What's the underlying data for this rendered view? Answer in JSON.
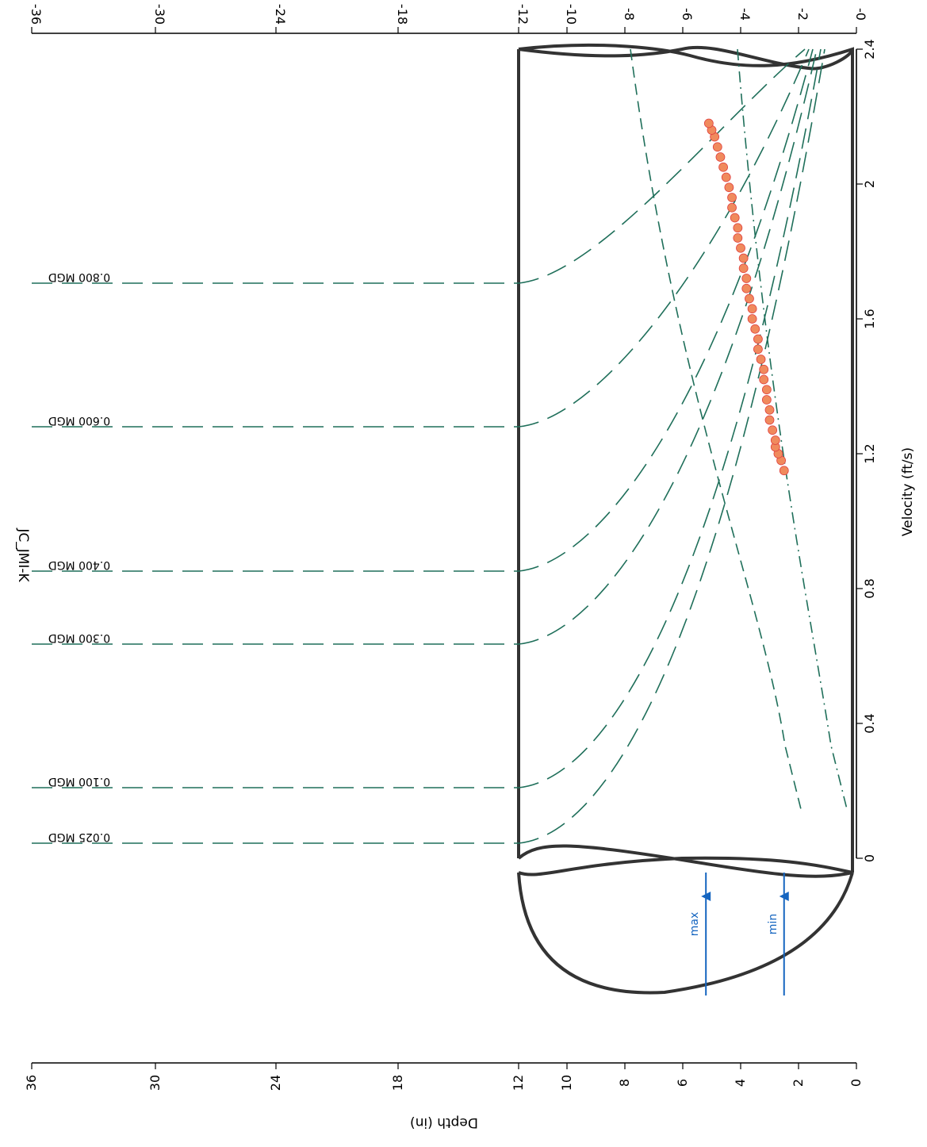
{
  "chart_data": {
    "type": "scatter",
    "title": "JC_JMI-K",
    "xlabel": "Velocity (ft/s)",
    "ylabel": "Depth (in)",
    "ylim": [
      0,
      36
    ],
    "xlim": [
      0,
      2.4
    ],
    "y_ticks": [
      "0",
      "2",
      "4",
      "6",
      "8",
      "10",
      "12",
      "18",
      "24",
      "30",
      "36"
    ],
    "x_ticks": [
      "0",
      "0.4",
      "0.8",
      "1.2",
      "1.6",
      "2",
      "2.4"
    ],
    "opposite_axis_ticks": [
      "-0",
      "-2",
      "-4",
      "-6",
      "-8",
      "-10",
      "-12",
      "-18",
      "-24",
      "-30",
      "-36"
    ],
    "pipe_diameter_in": 12,
    "flow_lines": [
      {
        "label": "0.025 MGD",
        "flow_mgd": 0.025
      },
      {
        "label": "0.100 MGD",
        "flow_mgd": 0.1
      },
      {
        "label": "0.300 MGD",
        "flow_mgd": 0.3
      },
      {
        "label": "0.400 MGD",
        "flow_mgd": 0.4
      },
      {
        "label": "0.600 MGD",
        "flow_mgd": 0.6
      },
      {
        "label": "0.800 MGD",
        "flow_mgd": 0.8
      }
    ],
    "froude_lines": [
      {
        "label": "",
        "froude": 1.0
      },
      {
        "label": "",
        "froude": 0.5
      }
    ],
    "levels": [
      {
        "label": "max",
        "depth_in": 5.2
      },
      {
        "label": "min",
        "depth_in": 2.5
      }
    ],
    "series": [
      {
        "x": [
          1.15,
          1.18,
          1.2,
          1.22,
          1.24,
          1.27,
          1.3,
          1.33,
          1.36,
          1.39,
          1.42,
          1.45,
          1.48,
          1.51,
          1.54,
          1.57,
          1.6,
          1.63,
          1.66,
          1.69,
          1.72,
          1.75,
          1.78,
          1.81,
          1.84,
          1.87,
          1.9,
          1.93,
          1.96,
          1.99,
          2.02,
          2.05,
          2.08,
          2.11,
          2.14,
          2.16,
          2.18
        ],
        "y": [
          2.5,
          2.6,
          2.7,
          2.8,
          2.8,
          2.9,
          3.0,
          3.0,
          3.1,
          3.1,
          3.2,
          3.2,
          3.3,
          3.4,
          3.4,
          3.5,
          3.6,
          3.6,
          3.7,
          3.8,
          3.8,
          3.9,
          3.9,
          4.0,
          4.1,
          4.1,
          4.2,
          4.3,
          4.3,
          4.4,
          4.5,
          4.6,
          4.7,
          4.8,
          4.9,
          5.0,
          5.1
        ]
      }
    ],
    "colors": {
      "points": "#f08a5d",
      "points_outline": "#e04040",
      "flow_lines": "#1f6f5a",
      "levels": "#1565c0",
      "pipe": "#333333"
    }
  }
}
